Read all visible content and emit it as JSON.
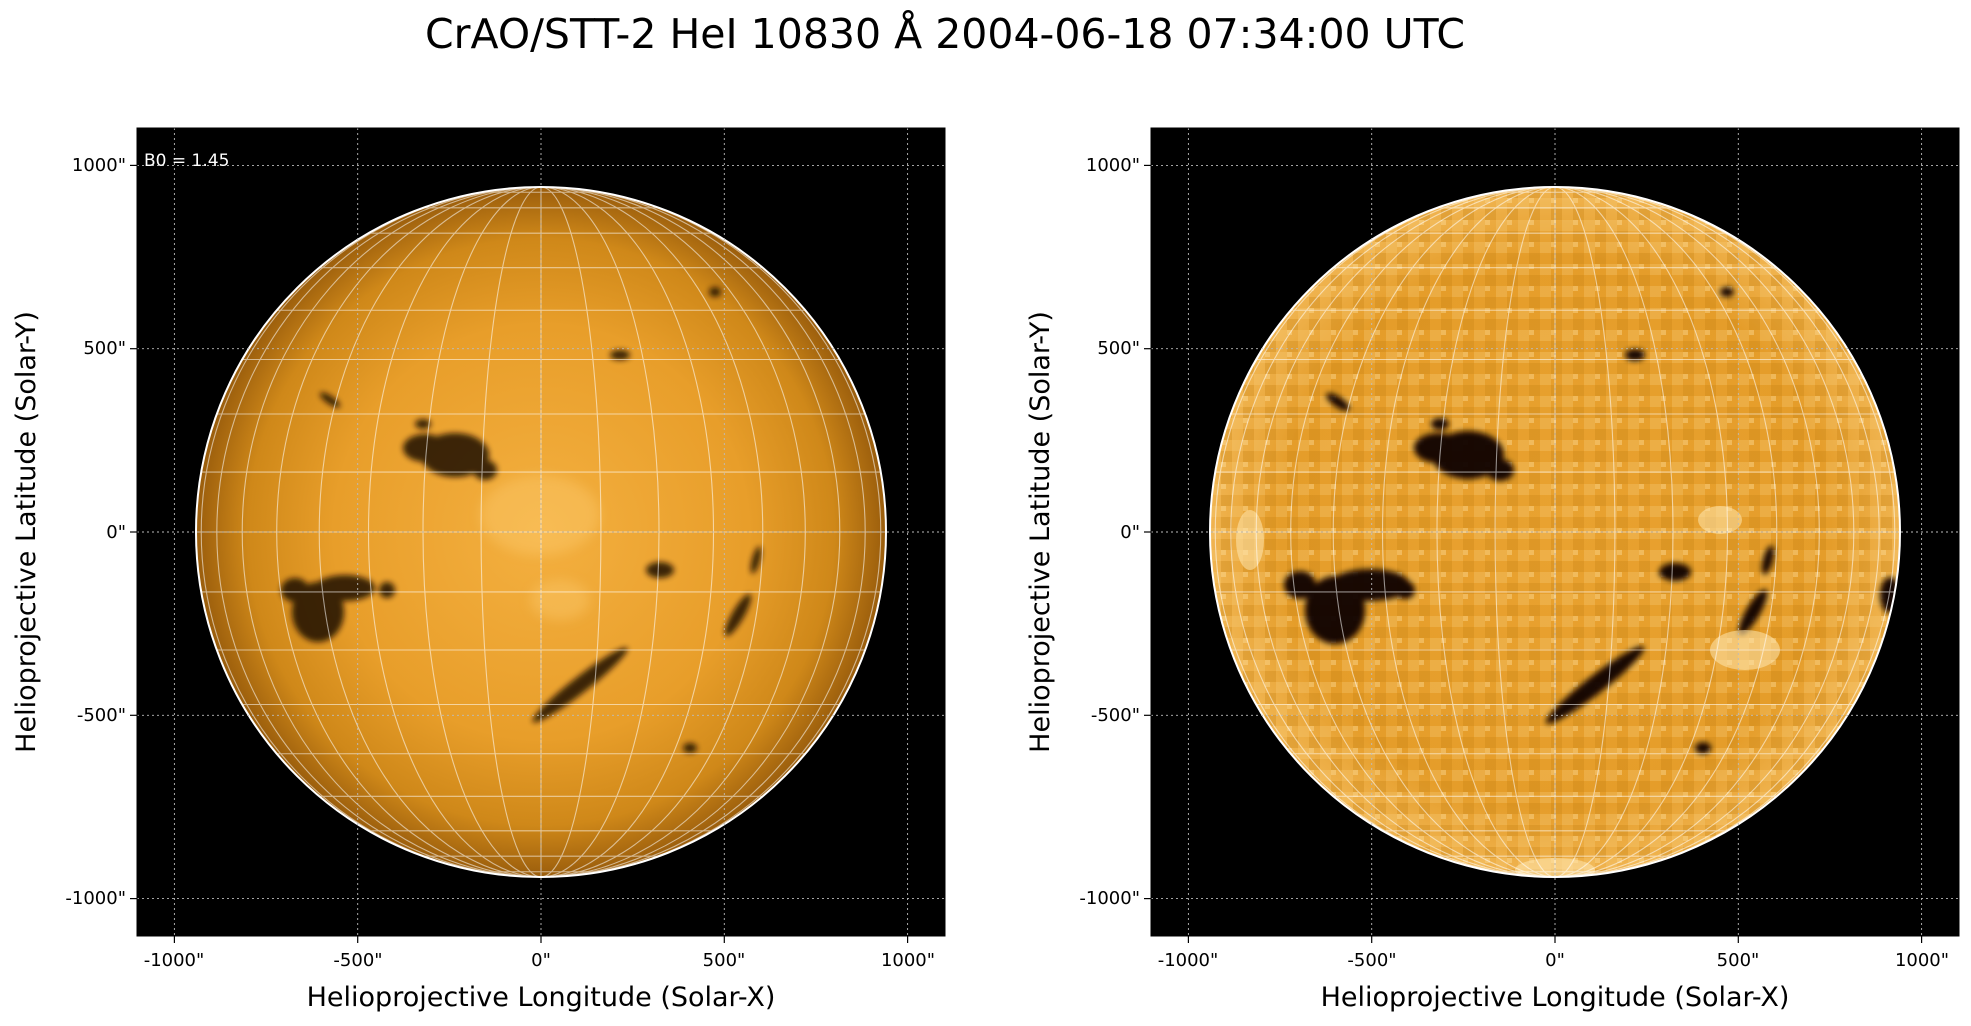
{
  "title": "CrAO/STT-2 HeI 10830 Å 2004-06-18 07:34:00 UTC",
  "colors": {
    "background": "#000000",
    "disk_center": "#f2ad3a",
    "disk_limb": "#b06d0e",
    "grid": "#ffffff"
  },
  "panels": [
    {
      "name": "left",
      "annotation": "B0 = 1.45",
      "xlabel": "Helioprojective Longitude (Solar-X)",
      "ylabel": "Helioprojective Latitude (Solar-Y)",
      "limb_darkening": true,
      "xticks": [
        "-1000\"",
        "-500\"",
        "0\"",
        "500\"",
        "1000\""
      ],
      "yticks": [
        "1000\"",
        "500\"",
        "0\"",
        "-500\"",
        "-1000\""
      ]
    },
    {
      "name": "right",
      "annotation": "",
      "xlabel": "Helioprojective Longitude (Solar-X)",
      "ylabel": "Helioprojective Latitude (Solar-Y)",
      "limb_darkening": false,
      "xticks": [
        "-1000\"",
        "-500\"",
        "0\"",
        "500\"",
        "1000\""
      ],
      "yticks": [
        "1000\"",
        "500\"",
        "0\"",
        "-500\"",
        "-1000\""
      ]
    }
  ]
}
